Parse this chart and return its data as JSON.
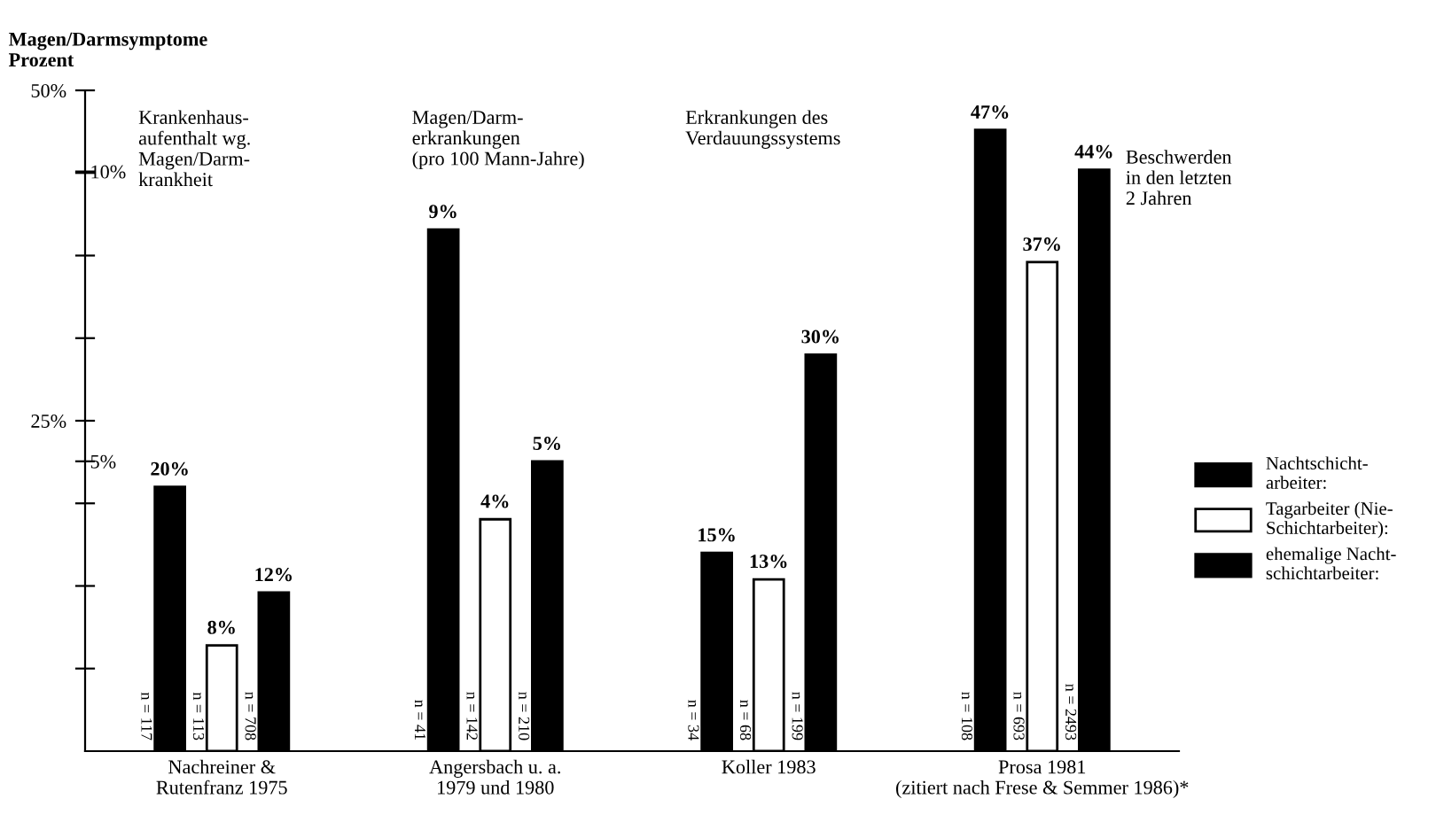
{
  "chart_data": {
    "type": "bar",
    "categories": [
      "Nachreiner &\nRutenfranz 1975",
      "Angersbach u. a.\n1979 und 1980",
      "Koller 1983",
      "Prosa 1981\n(zitiert nach Frese & Semmer 1986)*"
    ],
    "series": [
      {
        "name": "Nachtschicht-\narbeiter:",
        "color": "#000000",
        "values": [
          20,
          null,
          15,
          47
        ],
        "value_labels": [
          "20%",
          null,
          "15%",
          "47%"
        ]
      },
      {
        "name": "Tagarbeiter (Nie-\nSchichtarbeiter):",
        "color": "#ffffff",
        "values": [
          8,
          null,
          13,
          37
        ],
        "value_labels": [
          "8%",
          null,
          "13%",
          "37%"
        ]
      },
      {
        "name": "ehemalige Nacht-\nschichtarbeiter:",
        "color": "#000000",
        "values": [
          12,
          null,
          30,
          44
        ],
        "value_labels": [
          "12%",
          null,
          "30%",
          "44%"
        ]
      },
      {
        "axis": "y2",
        "color": "#000000",
        "values": [
          null,
          9,
          null,
          null
        ],
        "value_labels": [
          null,
          "9%",
          null,
          null
        ]
      },
      {
        "axis": "y2",
        "color": "#ffffff",
        "values": [
          null,
          4,
          null,
          null
        ],
        "value_labels": [
          null,
          "4%",
          null,
          null
        ]
      },
      {
        "axis": "y2",
        "color": "#000000",
        "values": [
          null,
          5,
          null,
          null
        ],
        "value_labels": [
          null,
          "5%",
          null,
          null
        ]
      }
    ],
    "ylim": [
      0,
      50
    ],
    "yticks": [
      {
        "value": 6.25,
        "label": null
      },
      {
        "value": 12.5,
        "label": null
      },
      {
        "value": 18.75,
        "label": null
      },
      {
        "value": 25,
        "label": "25%"
      },
      {
        "value": 31.25,
        "label": null
      },
      {
        "value": 37.5,
        "label": null
      },
      {
        "value": 43.75,
        "label": null
      },
      {
        "value": 50,
        "label": "50%"
      }
    ],
    "y2lim": [
      0,
      11.4
    ],
    "y2ticks": [
      {
        "value": 5,
        "label": "5%"
      },
      {
        "value": 10,
        "label": "10%"
      }
    ],
    "annotations": [
      "Magen/Darmsymptome\nProzent",
      "Krankenhaus-\naufenthalt wg.\nMagen/Darm-\nkrankheit",
      "Magen/Darm-\nerkrankungen\n(pro 100 Mann-Jahre)",
      "Erkrankungen des\nVerdauungssystems",
      "Beschwerden\nin den letzten\n2 Jahren",
      "n = 117",
      "n = 113",
      "n = 708",
      "n = 41",
      "n = 142",
      "n = 210",
      "n = 34",
      "n = 68",
      "n = 199",
      "n = 108",
      "n = 693",
      "n = 2493"
    ],
    "legend": "right",
    "grid": false
  }
}
